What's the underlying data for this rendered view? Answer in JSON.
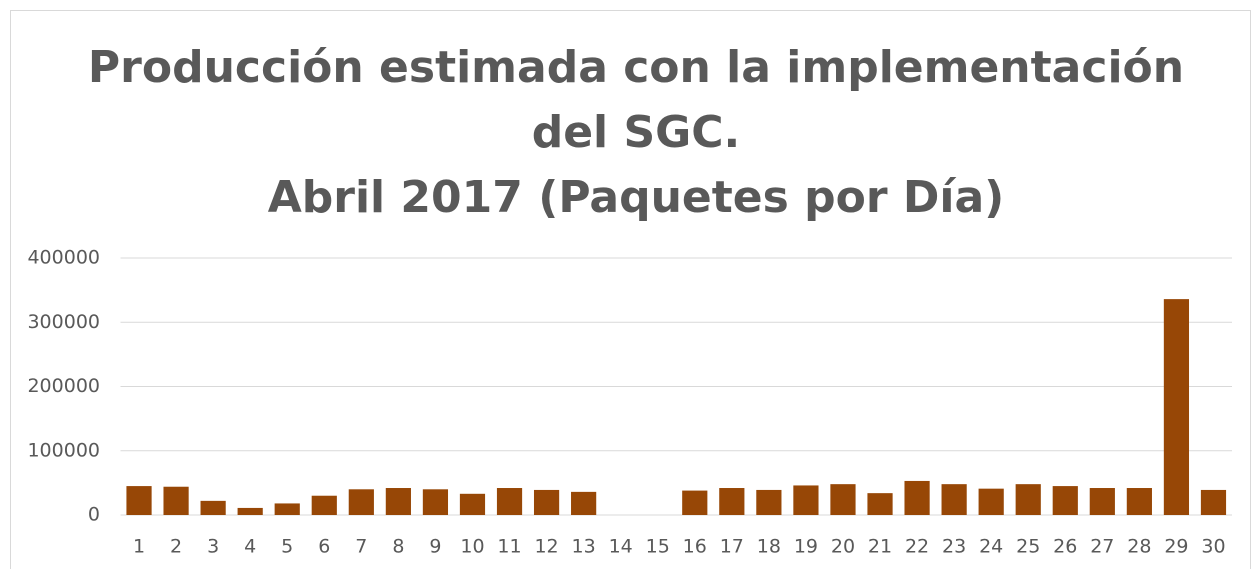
{
  "chart_data": {
    "type": "bar",
    "title": [
      "Producción estimada con la implementación",
      "del SGC.",
      "Abril 2017 (Paquetes por Día)"
    ],
    "categories": [
      "1",
      "2",
      "3",
      "4",
      "5",
      "6",
      "7",
      "8",
      "9",
      "10",
      "11",
      "12",
      "13",
      "14",
      "15",
      "16",
      "17",
      "18",
      "19",
      "20",
      "21",
      "22",
      "23",
      "24",
      "25",
      "26",
      "27",
      "28",
      "29",
      "30"
    ],
    "values": [
      45000,
      44000,
      22000,
      11000,
      18000,
      30000,
      40000,
      42000,
      40000,
      33000,
      42000,
      39000,
      36000,
      0,
      0,
      38000,
      42000,
      39000,
      46000,
      48000,
      34000,
      53000,
      48000,
      41000,
      48000,
      45000,
      42000,
      42000,
      336000,
      39000
    ],
    "color": "#974706",
    "ylim": [
      0,
      400000
    ],
    "yticks": [
      0,
      100000,
      200000,
      300000,
      400000
    ],
    "grid": true
  }
}
